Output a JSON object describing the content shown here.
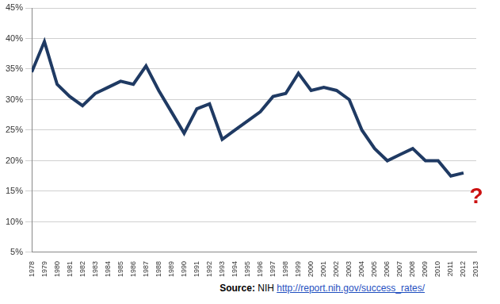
{
  "chart_data": {
    "type": "line",
    "categories": [
      "1978",
      "1979",
      "1980",
      "1981",
      "1982",
      "1983",
      "1984",
      "1985",
      "1986",
      "1987",
      "1988",
      "1989",
      "1990",
      "1991",
      "1992",
      "1993",
      "1994",
      "1995",
      "1996",
      "1997",
      "1998",
      "1999",
      "2000",
      "2001",
      "2002",
      "2003",
      "2004",
      "2005",
      "2006",
      "2007",
      "2008",
      "2009",
      "2010",
      "2011",
      "2012",
      "2013"
    ],
    "values": [
      34.5,
      39.5,
      32.5,
      30.5,
      29,
      31,
      32,
      33,
      32.5,
      35.5,
      31.5,
      28,
      24.5,
      28.5,
      29.3,
      23.5,
      25,
      26.5,
      28,
      30.5,
      31,
      34.3,
      31.5,
      32,
      31.5,
      30,
      25,
      22,
      20,
      21,
      22,
      20,
      20,
      17.5,
      18,
      null
    ],
    "color": "#1f3a63",
    "marker": "none",
    "line_style": "solid",
    "ylim": [
      5,
      45
    ],
    "yticks": [
      {
        "value": 5,
        "label": "5%"
      },
      {
        "value": 10,
        "label": "10%"
      },
      {
        "value": 15,
        "label": "15%"
      },
      {
        "value": 20,
        "label": "20%"
      },
      {
        "value": 25,
        "label": "25%"
      },
      {
        "value": 30,
        "label": "30%"
      },
      {
        "value": 35,
        "label": "35%"
      },
      {
        "value": 40,
        "label": "40%"
      },
      {
        "value": 45,
        "label": "45%"
      }
    ],
    "grid": true,
    "annotations": [
      {
        "text": "?",
        "x": "2013",
        "y": 14,
        "color": "#cc1111"
      }
    ],
    "source": {
      "label": "Source:",
      "text": "NIH",
      "url": "http://report.nih.gov/success_rates/"
    }
  }
}
